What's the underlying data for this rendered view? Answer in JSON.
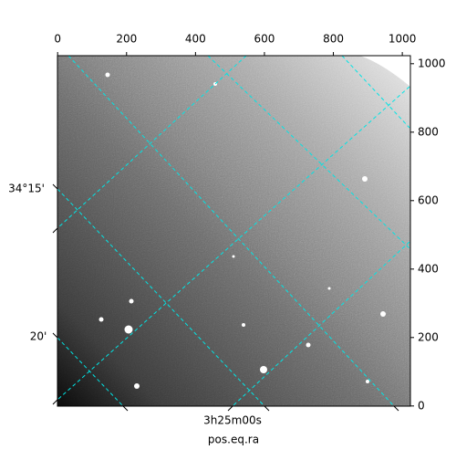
{
  "chart_data": {
    "type": "image",
    "xlabel": "pos.eq.ra",
    "xlim": [
      -0.5,
      1023.5
    ],
    "ylim": [
      -0.5,
      1023.5
    ],
    "xticks": [
      0,
      200,
      400,
      600,
      800,
      1000
    ],
    "yticks": [
      0,
      200,
      400,
      600,
      800,
      1000
    ],
    "ra_tick_labels": [
      "3h25m00s"
    ],
    "dec_tick_labels": [
      "34°15'",
      "20'"
    ],
    "grid": true,
    "grid_color": "#00e5e5"
  }
}
